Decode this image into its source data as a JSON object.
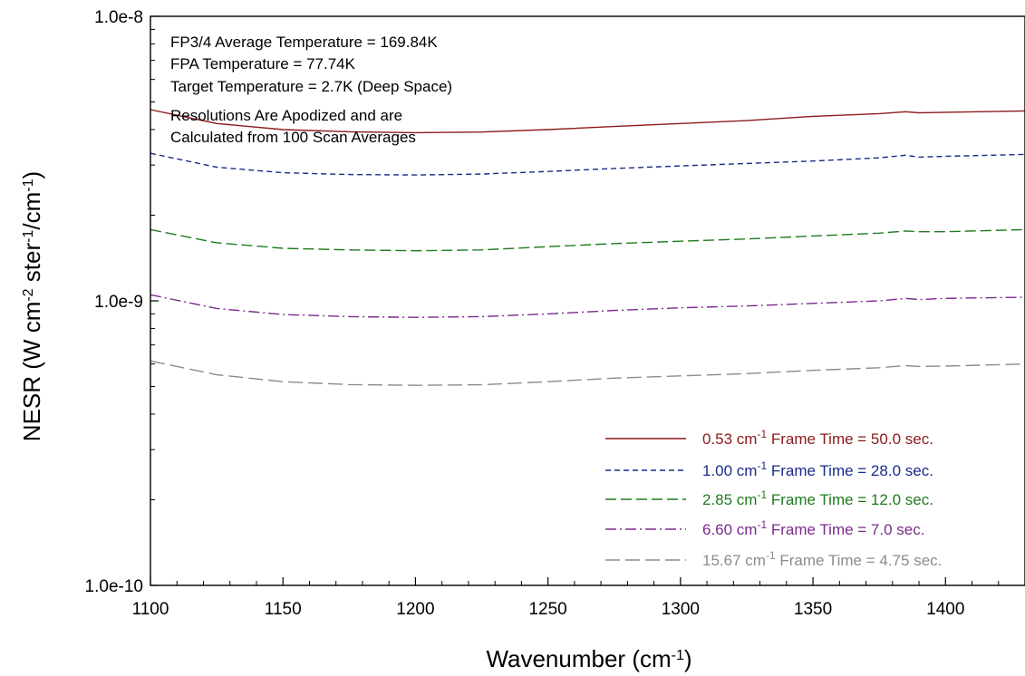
{
  "chart_data": {
    "type": "line",
    "xlabel": {
      "main": "Wavenumber (cm",
      "sup": "-1",
      "tail": ")"
    },
    "ylabel": {
      "p1": "NESR (W cm",
      "sup1": "-2",
      "p2": " ster",
      "sup2": "-1",
      "p3": "/cm",
      "sup3": "-1",
      "p4": ")"
    },
    "xlim": [
      1100,
      1430
    ],
    "ylim": [
      1e-10,
      1e-08
    ],
    "yscale": "log",
    "grid": false,
    "legend_position": "bottom-right",
    "x_ticks": [
      {
        "value": 1100,
        "label": "1100"
      },
      {
        "value": 1150,
        "label": "1150"
      },
      {
        "value": 1200,
        "label": "1200"
      },
      {
        "value": 1250,
        "label": "1250"
      },
      {
        "value": 1300,
        "label": "1300"
      },
      {
        "value": 1350,
        "label": "1350"
      },
      {
        "value": 1400,
        "label": "1400"
      }
    ],
    "y_ticks": [
      {
        "value": 1e-10,
        "label": "1.0e-10"
      },
      {
        "value": 1e-09,
        "label": "1.0e-9"
      },
      {
        "value": 1e-08,
        "label": "1.0e-8"
      }
    ],
    "annotations": [
      "FP3/4 Average Temperature = 169.84K",
      "FPA Temperature = 77.74K",
      "Target Temperature = 2.7K (Deep Space)",
      "Resolutions Are Apodized and are",
      "Calculated from 100 Scan Averages"
    ],
    "series": [
      {
        "res": "0.53 cm",
        "sup": "-1",
        "rest": " Frame Time = 50.0 sec.",
        "color": "#8b1a1a",
        "dash": "none",
        "x": [
          1100,
          1125,
          1150,
          1175,
          1200,
          1225,
          1250,
          1275,
          1300,
          1325,
          1350,
          1375,
          1385,
          1390,
          1400,
          1430
        ],
        "y": [
          4.7e-09,
          4.2e-09,
          4e-09,
          3.93e-09,
          3.9e-09,
          3.92e-09,
          4e-09,
          4.1e-09,
          4.2e-09,
          4.3e-09,
          4.45e-09,
          4.55e-09,
          4.62e-09,
          4.58e-09,
          4.6e-09,
          4.65e-09
        ]
      },
      {
        "res": "1.00 cm",
        "sup": "-1",
        "rest": " Frame Time = 28.0 sec.",
        "color": "#1a2a8b",
        "dash": "6,4",
        "x": [
          1100,
          1125,
          1150,
          1175,
          1200,
          1225,
          1250,
          1275,
          1300,
          1325,
          1350,
          1375,
          1385,
          1390,
          1400,
          1430
        ],
        "y": [
          3.3e-09,
          2.95e-09,
          2.82e-09,
          2.78e-09,
          2.77e-09,
          2.79e-09,
          2.85e-09,
          2.92e-09,
          2.98e-09,
          3.04e-09,
          3.1e-09,
          3.18e-09,
          3.25e-09,
          3.2e-09,
          3.22e-09,
          3.27e-09
        ]
      },
      {
        "res": "2.85 cm",
        "sup": "-1",
        "rest": " Frame Time = 12.0 sec.",
        "color": "#1f7a1f",
        "dash": "12,5",
        "x": [
          1100,
          1125,
          1150,
          1175,
          1200,
          1225,
          1250,
          1275,
          1300,
          1325,
          1350,
          1375,
          1385,
          1390,
          1400,
          1430
        ],
        "y": [
          1.78e-09,
          1.6e-09,
          1.53e-09,
          1.51e-09,
          1.5e-09,
          1.51e-09,
          1.55e-09,
          1.59e-09,
          1.62e-09,
          1.65e-09,
          1.69e-09,
          1.73e-09,
          1.76e-09,
          1.75e-09,
          1.75e-09,
          1.78e-09
        ]
      },
      {
        "res": "6.60 cm",
        "sup": "-1",
        "rest": " Frame Time = 7.0 sec.",
        "color": "#7a2a8b",
        "dash": "12,4,2,4",
        "x": [
          1100,
          1125,
          1150,
          1175,
          1200,
          1225,
          1250,
          1275,
          1300,
          1325,
          1350,
          1375,
          1385,
          1390,
          1400,
          1430
        ],
        "y": [
          1.05e-09,
          9.4e-10,
          8.95e-10,
          8.8e-10,
          8.75e-10,
          8.8e-10,
          9e-10,
          9.25e-10,
          9.45e-10,
          9.6e-10,
          9.8e-10,
          1e-09,
          1.02e-09,
          1.01e-09,
          1.02e-09,
          1.03e-09
        ]
      },
      {
        "res": "15.67 cm",
        "sup": "-1",
        "rest": " Frame Time = 4.75 sec.",
        "color": "#8c8c8c",
        "dash": "16,6",
        "x": [
          1100,
          1125,
          1150,
          1175,
          1200,
          1225,
          1250,
          1275,
          1300,
          1325,
          1350,
          1375,
          1385,
          1390,
          1400,
          1430
        ],
        "y": [
          6.15e-10,
          5.5e-10,
          5.2e-10,
          5.08e-10,
          5.05e-10,
          5.07e-10,
          5.2e-10,
          5.35e-10,
          5.45e-10,
          5.55e-10,
          5.7e-10,
          5.82e-10,
          5.92e-10,
          5.88e-10,
          5.9e-10,
          6e-10
        ]
      }
    ]
  }
}
